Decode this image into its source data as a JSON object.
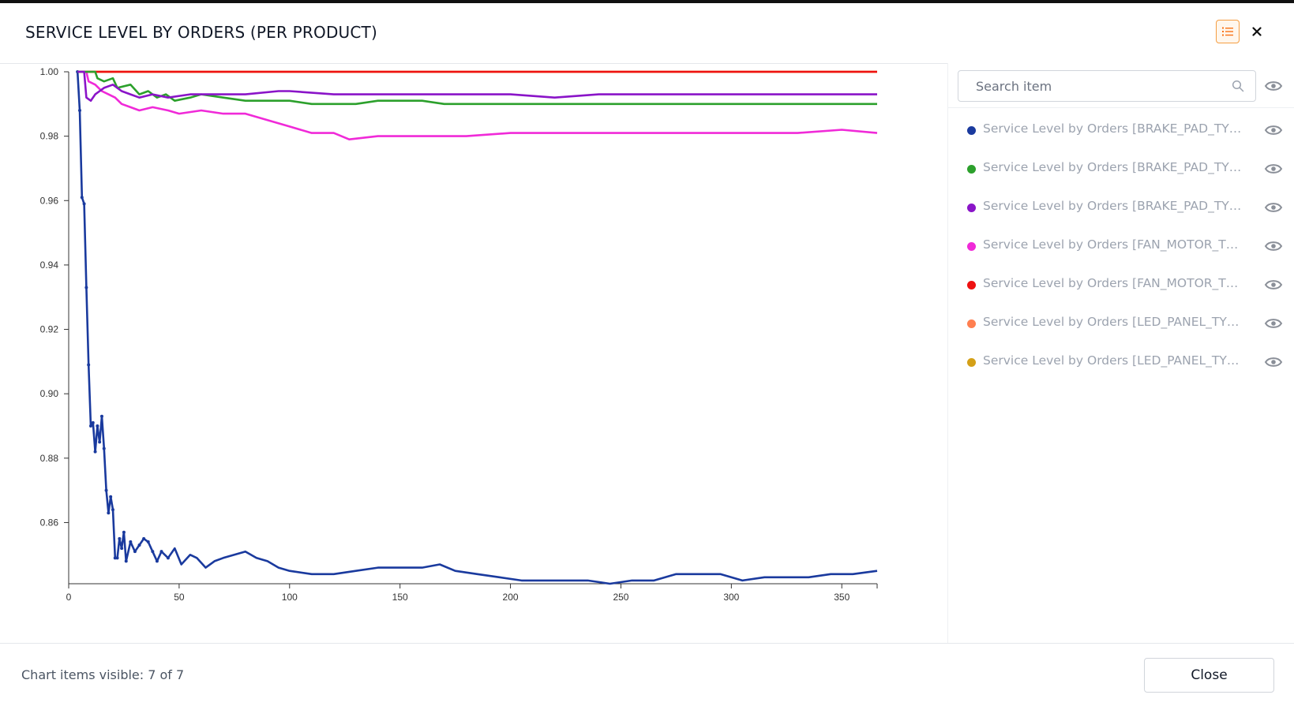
{
  "window": {
    "title": "SERVICE LEVEL BY ORDERS (PER PRODUCT)",
    "list_toggle_icon": "list-icon",
    "close_icon": "close-icon"
  },
  "sidebar": {
    "search_placeholder": "Search item",
    "search_icon": "search-icon",
    "toggle_all_icon": "eye-icon",
    "items": [
      {
        "label": "Service Level by Orders [BRAKE_PAD_TYPE...",
        "color": "#1a3a9e",
        "icon": "eye-icon"
      },
      {
        "label": "Service Level by Orders [BRAKE_PAD_TYPE...",
        "color": "#2ca02c",
        "icon": "eye-icon"
      },
      {
        "label": "Service Level by Orders [BRAKE_PAD_TYPE...",
        "color": "#8a14c8",
        "icon": "eye-icon"
      },
      {
        "label": "Service Level by Orders [FAN_MOTOR_TYP...",
        "color": "#f02ad8",
        "icon": "eye-icon"
      },
      {
        "label": "Service Level by Orders [FAN_MOTOR_TYP...",
        "color": "#ee1111",
        "icon": "eye-icon"
      },
      {
        "label": "Service Level by Orders [LED_PANEL_TYPE...",
        "color": "#ff7f50",
        "icon": "eye-icon"
      },
      {
        "label": "Service Level by Orders [LED_PANEL_TYPE...",
        "color": "#d4a017",
        "icon": "eye-icon"
      }
    ]
  },
  "footer": {
    "status": "Chart items visible: 7 of 7",
    "close_label": "Close"
  },
  "chart_data": {
    "type": "line",
    "xlim": [
      0,
      366
    ],
    "ylim": [
      0.841,
      1.0
    ],
    "x_ticks": [
      0,
      50,
      100,
      150,
      200,
      250,
      300,
      350
    ],
    "x_tick_labels": [
      "0",
      "50",
      "100",
      "150",
      "200",
      "250",
      "300",
      "350"
    ],
    "y_ticks": [
      0.86,
      0.88,
      0.9,
      0.92,
      0.94,
      0.96,
      0.98,
      1.0
    ],
    "y_tick_labels": [
      "0.86",
      "0.88",
      "0.90",
      "0.92",
      "0.94",
      "0.96",
      "0.98",
      "1.00"
    ],
    "grid": false,
    "legend": "right-panel",
    "series": [
      {
        "color": "#1a3a9e",
        "markers": true,
        "points": [
          [
            4,
            1.0
          ],
          [
            5,
            0.988
          ],
          [
            6,
            0.961
          ],
          [
            7,
            0.959
          ],
          [
            8,
            0.933
          ],
          [
            9,
            0.909
          ],
          [
            10,
            0.89
          ],
          [
            11,
            0.891
          ],
          [
            12,
            0.882
          ],
          [
            13,
            0.89
          ],
          [
            14,
            0.885
          ],
          [
            15,
            0.893
          ],
          [
            16,
            0.883
          ],
          [
            17,
            0.87
          ],
          [
            18,
            0.863
          ],
          [
            19,
            0.868
          ],
          [
            20,
            0.864
          ],
          [
            21,
            0.849
          ],
          [
            22,
            0.849
          ],
          [
            23,
            0.855
          ],
          [
            24,
            0.852
          ],
          [
            25,
            0.857
          ],
          [
            26,
            0.848
          ],
          [
            28,
            0.854
          ],
          [
            30,
            0.851
          ],
          [
            32,
            0.853
          ],
          [
            34,
            0.855
          ],
          [
            36,
            0.854
          ],
          [
            38,
            0.851
          ],
          [
            40,
            0.848
          ],
          [
            42,
            0.851
          ],
          [
            45,
            0.849
          ],
          [
            48,
            0.852
          ],
          [
            51,
            0.847
          ],
          [
            55,
            0.85
          ],
          [
            58,
            0.849
          ],
          [
            62,
            0.846
          ],
          [
            66,
            0.848
          ],
          [
            70,
            0.849
          ],
          [
            75,
            0.85
          ],
          [
            80,
            0.851
          ],
          [
            85,
            0.849
          ],
          [
            90,
            0.848
          ],
          [
            95,
            0.846
          ],
          [
            100,
            0.845
          ],
          [
            110,
            0.844
          ],
          [
            120,
            0.844
          ],
          [
            130,
            0.845
          ],
          [
            140,
            0.846
          ],
          [
            150,
            0.846
          ],
          [
            160,
            0.846
          ],
          [
            168,
            0.847
          ],
          [
            175,
            0.845
          ],
          [
            185,
            0.844
          ],
          [
            195,
            0.843
          ],
          [
            205,
            0.842
          ],
          [
            215,
            0.842
          ],
          [
            225,
            0.842
          ],
          [
            235,
            0.842
          ],
          [
            245,
            0.841
          ],
          [
            255,
            0.842
          ],
          [
            265,
            0.842
          ],
          [
            275,
            0.844
          ],
          [
            285,
            0.844
          ],
          [
            295,
            0.844
          ],
          [
            305,
            0.842
          ],
          [
            315,
            0.843
          ],
          [
            325,
            0.843
          ],
          [
            335,
            0.843
          ],
          [
            345,
            0.844
          ],
          [
            355,
            0.844
          ],
          [
            366,
            0.845
          ]
        ]
      },
      {
        "color": "#2ca02c",
        "markers": false,
        "points": [
          [
            4,
            1.0
          ],
          [
            12,
            1.0
          ],
          [
            13,
            0.998
          ],
          [
            16,
            0.997
          ],
          [
            20,
            0.998
          ],
          [
            22,
            0.995
          ],
          [
            28,
            0.996
          ],
          [
            32,
            0.993
          ],
          [
            36,
            0.994
          ],
          [
            40,
            0.992
          ],
          [
            44,
            0.993
          ],
          [
            48,
            0.991
          ],
          [
            55,
            0.992
          ],
          [
            60,
            0.993
          ],
          [
            70,
            0.992
          ],
          [
            80,
            0.991
          ],
          [
            90,
            0.991
          ],
          [
            100,
            0.991
          ],
          [
            110,
            0.99
          ],
          [
            120,
            0.99
          ],
          [
            130,
            0.99
          ],
          [
            140,
            0.991
          ],
          [
            150,
            0.991
          ],
          [
            160,
            0.991
          ],
          [
            170,
            0.99
          ],
          [
            180,
            0.99
          ],
          [
            200,
            0.99
          ],
          [
            220,
            0.99
          ],
          [
            240,
            0.99
          ],
          [
            260,
            0.99
          ],
          [
            280,
            0.99
          ],
          [
            300,
            0.99
          ],
          [
            320,
            0.99
          ],
          [
            340,
            0.99
          ],
          [
            366,
            0.99
          ]
        ]
      },
      {
        "color": "#8a14c8",
        "markers": false,
        "points": [
          [
            4,
            1.0
          ],
          [
            7,
            1.0
          ],
          [
            8,
            0.992
          ],
          [
            10,
            0.991
          ],
          [
            12,
            0.993
          ],
          [
            16,
            0.995
          ],
          [
            20,
            0.996
          ],
          [
            24,
            0.994
          ],
          [
            28,
            0.993
          ],
          [
            32,
            0.992
          ],
          [
            38,
            0.993
          ],
          [
            45,
            0.992
          ],
          [
            55,
            0.993
          ],
          [
            65,
            0.993
          ],
          [
            80,
            0.993
          ],
          [
            95,
            0.994
          ],
          [
            100,
            0.994
          ],
          [
            120,
            0.993
          ],
          [
            140,
            0.993
          ],
          [
            160,
            0.993
          ],
          [
            180,
            0.993
          ],
          [
            200,
            0.993
          ],
          [
            220,
            0.992
          ],
          [
            240,
            0.993
          ],
          [
            260,
            0.993
          ],
          [
            280,
            0.993
          ],
          [
            300,
            0.993
          ],
          [
            320,
            0.993
          ],
          [
            340,
            0.993
          ],
          [
            366,
            0.993
          ]
        ]
      },
      {
        "color": "#f02ad8",
        "markers": false,
        "points": [
          [
            4,
            1.0
          ],
          [
            8,
            1.0
          ],
          [
            9,
            0.997
          ],
          [
            12,
            0.996
          ],
          [
            15,
            0.994
          ],
          [
            18,
            0.993
          ],
          [
            21,
            0.992
          ],
          [
            24,
            0.99
          ],
          [
            28,
            0.989
          ],
          [
            32,
            0.988
          ],
          [
            38,
            0.989
          ],
          [
            45,
            0.988
          ],
          [
            50,
            0.987
          ],
          [
            60,
            0.988
          ],
          [
            70,
            0.987
          ],
          [
            80,
            0.987
          ],
          [
            90,
            0.985
          ],
          [
            100,
            0.983
          ],
          [
            110,
            0.981
          ],
          [
            120,
            0.981
          ],
          [
            127,
            0.979
          ],
          [
            140,
            0.98
          ],
          [
            150,
            0.98
          ],
          [
            165,
            0.98
          ],
          [
            180,
            0.98
          ],
          [
            200,
            0.981
          ],
          [
            220,
            0.981
          ],
          [
            240,
            0.981
          ],
          [
            255,
            0.981
          ],
          [
            270,
            0.981
          ],
          [
            290,
            0.981
          ],
          [
            310,
            0.981
          ],
          [
            330,
            0.981
          ],
          [
            350,
            0.982
          ],
          [
            366,
            0.981
          ]
        ]
      },
      {
        "color": "#ee1111",
        "markers": false,
        "points": [
          [
            4,
            1.0
          ],
          [
            366,
            1.0
          ]
        ]
      },
      {
        "color": "#ff7f50",
        "markers": false,
        "points": [
          [
            4,
            1.0
          ],
          [
            366,
            1.0
          ]
        ]
      },
      {
        "color": "#d4a017",
        "markers": false,
        "points": [
          [
            4,
            1.0
          ],
          [
            366,
            1.0
          ]
        ]
      }
    ]
  }
}
